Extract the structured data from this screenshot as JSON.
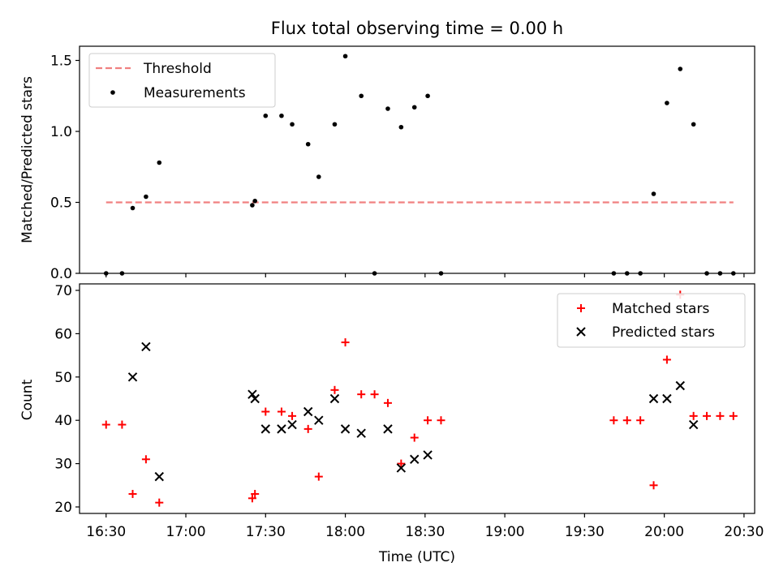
{
  "chart_data": [
    {
      "type": "scatter",
      "title": "Flux total observing time = 0.00 h",
      "xlabel": "",
      "ylabel": "Matched/Predicted stars",
      "ylim": [
        0,
        1.6
      ],
      "xlim": [
        "16:20",
        "20:34"
      ],
      "yticks": [
        0.0,
        0.5,
        1.0,
        1.5
      ],
      "ytick_labels": [
        "0.0",
        "0.5",
        "1.0",
        "1.5"
      ],
      "legend_position": "top-left",
      "threshold": {
        "name": "Threshold",
        "y": 0.5,
        "x_start": "16:30",
        "x_end": "20:26",
        "color": "#f08080",
        "style": "dashed"
      },
      "series": [
        {
          "name": "Measurements",
          "color": "#000000",
          "marker": "dot",
          "x": [
            "16:30",
            "16:36",
            "16:40",
            "16:45",
            "16:50",
            "17:25",
            "17:26",
            "17:30",
            "17:36",
            "17:40",
            "17:46",
            "17:50",
            "17:56",
            "18:00",
            "18:06",
            "18:11",
            "18:16",
            "18:21",
            "18:26",
            "18:31",
            "18:36",
            "19:41",
            "19:46",
            "19:51",
            "19:56",
            "20:01",
            "20:06",
            "20:11",
            "20:16",
            "20:21",
            "20:26"
          ],
          "y": [
            0.0,
            0.0,
            0.46,
            0.54,
            0.78,
            0.48,
            0.51,
            1.11,
            1.11,
            1.05,
            0.91,
            0.68,
            1.05,
            1.53,
            1.25,
            0.0,
            1.16,
            1.03,
            1.17,
            1.25,
            0.0,
            0.0,
            0.0,
            0.0,
            0.56,
            1.2,
            1.44,
            1.05,
            0.0,
            0.0,
            0.0
          ]
        }
      ]
    },
    {
      "type": "scatter",
      "title": "",
      "xlabel": "Time (UTC)",
      "ylabel": "Count",
      "ylim": [
        18.5,
        71.5
      ],
      "xlim": [
        "16:20",
        "20:34"
      ],
      "yticks": [
        20,
        30,
        40,
        50,
        60,
        70
      ],
      "ytick_labels": [
        "20",
        "30",
        "40",
        "50",
        "60",
        "70"
      ],
      "xticks": [
        "16:30",
        "17:00",
        "17:30",
        "18:00",
        "18:30",
        "19:00",
        "19:30",
        "20:00",
        "20:30"
      ],
      "legend_position": "top-right",
      "series": [
        {
          "name": "Matched stars",
          "color": "#ff0000",
          "marker": "plus",
          "x": [
            "16:30",
            "16:36",
            "16:40",
            "16:45",
            "16:50",
            "17:25",
            "17:26",
            "17:30",
            "17:36",
            "17:40",
            "17:46",
            "17:50",
            "17:56",
            "18:00",
            "18:06",
            "18:11",
            "18:16",
            "18:21",
            "18:26",
            "18:31",
            "18:36",
            "19:41",
            "19:46",
            "19:51",
            "19:56",
            "20:01",
            "20:06",
            "20:11",
            "20:16",
            "20:21",
            "20:26"
          ],
          "y": [
            39,
            39,
            23,
            31,
            21,
            22,
            23,
            42,
            42,
            41,
            38,
            27,
            47,
            58,
            46,
            46,
            44,
            30,
            36,
            40,
            40,
            40,
            40,
            40,
            25,
            54,
            69,
            41,
            41,
            41,
            41
          ]
        },
        {
          "name": "Predicted stars",
          "color": "#000000",
          "marker": "x",
          "x": [
            "16:40",
            "16:45",
            "16:50",
            "17:25",
            "17:26",
            "17:30",
            "17:36",
            "17:40",
            "17:46",
            "17:50",
            "17:56",
            "18:00",
            "18:06",
            "18:16",
            "18:21",
            "18:26",
            "18:31",
            "19:56",
            "20:01",
            "20:06",
            "20:11"
          ],
          "y": [
            50,
            57,
            27,
            46,
            45,
            38,
            38,
            39,
            42,
            40,
            45,
            38,
            37,
            38,
            29,
            31,
            32,
            45,
            45,
            48,
            39
          ]
        }
      ]
    }
  ]
}
